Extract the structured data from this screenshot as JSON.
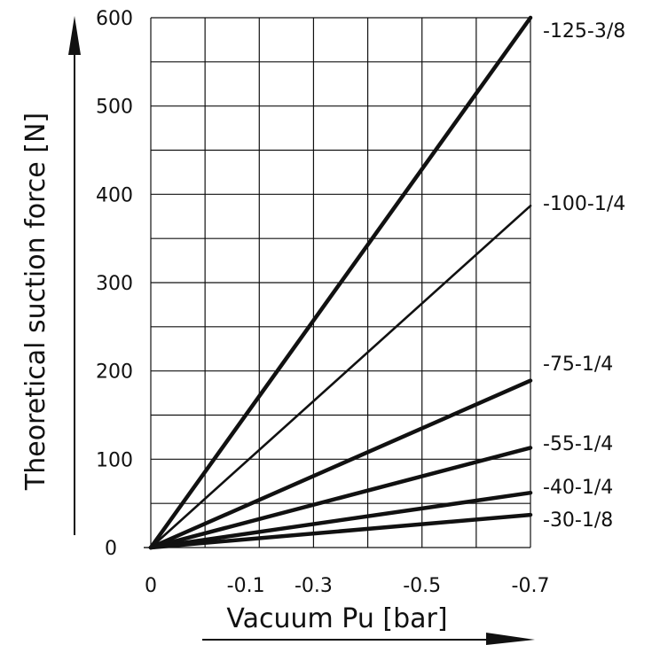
{
  "chart_data": {
    "type": "line",
    "xlabel": "Vacuum Pu [bar]",
    "ylabel": "Theoretical suction force [N]",
    "xlim": [
      0,
      -0.7
    ],
    "ylim": [
      0,
      600
    ],
    "x_ticks": [
      {
        "value": 0,
        "label": "0"
      },
      {
        "value": -0.1,
        "label": "-0.1"
      },
      {
        "value": -0.3,
        "label": "-0.3"
      },
      {
        "value": -0.5,
        "label": "-0.5"
      },
      {
        "value": -0.7,
        "label": "-0.7"
      }
    ],
    "y_ticks": [
      {
        "value": 0,
        "label": "0"
      },
      {
        "value": 100,
        "label": "100"
      },
      {
        "value": 200,
        "label": "200"
      },
      {
        "value": 300,
        "label": "300"
      },
      {
        "value": 400,
        "label": "400"
      },
      {
        "value": 500,
        "label": "500"
      },
      {
        "value": 600,
        "label": "600"
      }
    ],
    "grid": true,
    "series": [
      {
        "name": "-125-3/8",
        "points": [
          [
            0,
            0
          ],
          [
            -0.7,
            600
          ]
        ],
        "heavy": true
      },
      {
        "name": "-100-1/4",
        "points": [
          [
            0,
            0
          ],
          [
            -0.7,
            387
          ]
        ],
        "heavy": false
      },
      {
        "name": "-75-1/4",
        "points": [
          [
            0,
            0
          ],
          [
            -0.7,
            189
          ]
        ],
        "heavy": true
      },
      {
        "name": "-55-1/4",
        "points": [
          [
            0,
            0
          ],
          [
            -0.7,
            113
          ]
        ],
        "heavy": true
      },
      {
        "name": "-40-1/4",
        "points": [
          [
            0,
            0
          ],
          [
            -0.7,
            62
          ]
        ],
        "heavy": true
      },
      {
        "name": "-30-1/8",
        "points": [
          [
            0,
            0
          ],
          [
            -0.7,
            37
          ]
        ],
        "heavy": true
      }
    ]
  }
}
